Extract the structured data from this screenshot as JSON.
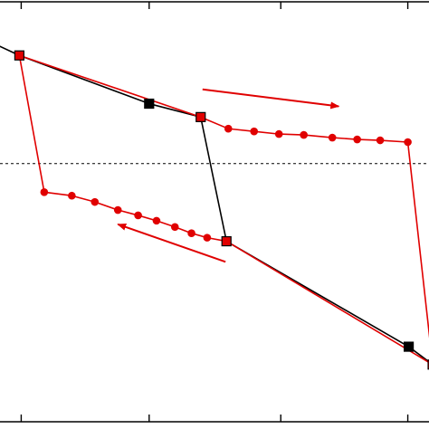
{
  "chart_data": {
    "type": "line",
    "title": "",
    "xlabel": "",
    "ylabel": "",
    "xlim": [
      0,
      470
    ],
    "ylim": [
      0,
      470
    ],
    "grid": false,
    "reference_line": {
      "y": 289,
      "style": "dashed"
    },
    "colors": {
      "black": "#000000",
      "red": "#e00000"
    },
    "series": [
      {
        "color": "#000000",
        "points": [
          [
            0,
            421
          ],
          [
            23,
            410
          ],
          [
            164,
            356
          ],
          [
            220,
            341
          ],
          [
            248,
            202
          ],
          [
            446,
            84
          ],
          [
            472,
            64
          ]
        ]
      },
      {
        "color": "#e00000",
        "points": [
          [
            23,
            410
          ],
          [
            50,
            257
          ],
          [
            80,
            253
          ],
          [
            105,
            246
          ],
          [
            130,
            237
          ],
          [
            152,
            231
          ],
          [
            172,
            225
          ],
          [
            192,
            218
          ],
          [
            210,
            211
          ],
          [
            227,
            206
          ],
          [
            248,
            202
          ],
          [
            472,
            64
          ],
          [
            445,
            313
          ],
          [
            415,
            315
          ],
          [
            390,
            316
          ],
          [
            363,
            318
          ],
          [
            332,
            321
          ],
          [
            305,
            322
          ],
          [
            278,
            325
          ],
          [
            250,
            328
          ],
          [
            220,
            341
          ],
          [
            23,
            410
          ]
        ]
      }
    ],
    "markers": [
      {
        "shape": "square",
        "fill": "#e00000",
        "x": 23,
        "y": 410
      },
      {
        "shape": "square",
        "fill": "#000000",
        "x": 164,
        "y": 356
      },
      {
        "shape": "square",
        "fill": "#e00000",
        "x": 220,
        "y": 341
      },
      {
        "shape": "circle",
        "fill": "#e00000",
        "x": 250,
        "y": 328
      },
      {
        "shape": "circle",
        "fill": "#e00000",
        "x": 278,
        "y": 325
      },
      {
        "shape": "circle",
        "fill": "#e00000",
        "x": 305,
        "y": 322
      },
      {
        "shape": "circle",
        "fill": "#e00000",
        "x": 332,
        "y": 321
      },
      {
        "shape": "circle",
        "fill": "#e00000",
        "x": 363,
        "y": 318
      },
      {
        "shape": "circle",
        "fill": "#e00000",
        "x": 390,
        "y": 316
      },
      {
        "shape": "circle",
        "fill": "#e00000",
        "x": 415,
        "y": 315
      },
      {
        "shape": "circle",
        "fill": "#e00000",
        "x": 445,
        "y": 313
      },
      {
        "shape": "circle",
        "fill": "#e00000",
        "x": 50,
        "y": 257
      },
      {
        "shape": "circle",
        "fill": "#e00000",
        "x": 80,
        "y": 253
      },
      {
        "shape": "circle",
        "fill": "#e00000",
        "x": 105,
        "y": 246
      },
      {
        "shape": "circle",
        "fill": "#e00000",
        "x": 130,
        "y": 237
      },
      {
        "shape": "circle",
        "fill": "#e00000",
        "x": 152,
        "y": 231
      },
      {
        "shape": "circle",
        "fill": "#e00000",
        "x": 172,
        "y": 225
      },
      {
        "shape": "circle",
        "fill": "#e00000",
        "x": 192,
        "y": 218
      },
      {
        "shape": "circle",
        "fill": "#e00000",
        "x": 210,
        "y": 211
      },
      {
        "shape": "circle",
        "fill": "#e00000",
        "x": 227,
        "y": 206
      },
      {
        "shape": "square",
        "fill": "#e00000",
        "x": 248,
        "y": 202
      },
      {
        "shape": "square",
        "fill": "#000000",
        "x": 446,
        "y": 84
      },
      {
        "shape": "square",
        "fill": "#e00000",
        "x": 472,
        "y": 64
      }
    ],
    "arrows": [
      {
        "color": "#e00000",
        "from": [
          222,
          372
        ],
        "to": [
          370,
          353
        ]
      },
      {
        "color": "#e00000",
        "from": [
          247,
          179
        ],
        "to": [
          130,
          221
        ]
      }
    ],
    "x_ticks": [
      25,
      164,
      307,
      445
    ],
    "y_ticks": []
  }
}
